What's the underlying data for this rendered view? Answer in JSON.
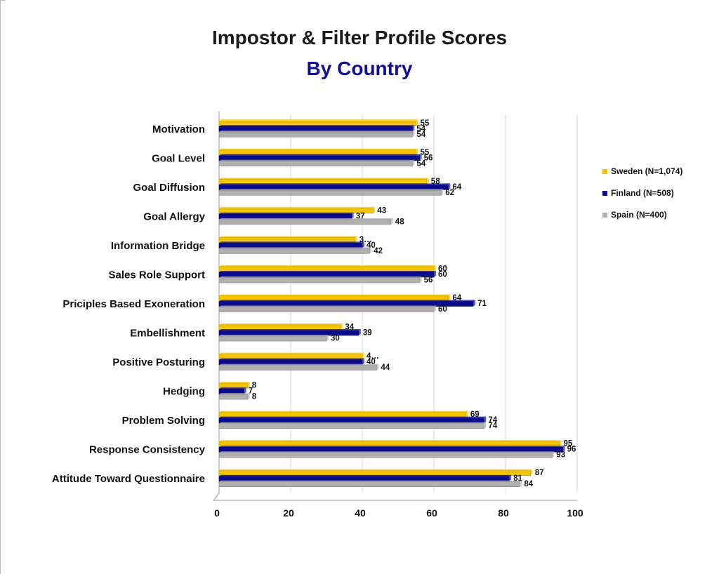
{
  "chart_data": {
    "type": "bar",
    "orientation": "horizontal",
    "title": "Impostor & Filter Profile Scores",
    "subtitle": "By Country",
    "categories": [
      "Motivation",
      "Goal Level",
      "Goal Diffusion",
      "Goal Allergy",
      "Information Bridge",
      "Sales Role Support",
      "Priciples Based Exoneration",
      "Embellishment",
      "Positive Posturing",
      "Hedging",
      "Problem Solving",
      "Response Consistency",
      "Attitude Toward Questionnaire"
    ],
    "series": [
      {
        "name": "Sweden (N=1,074)",
        "color": "#f5c400",
        "values": [
          55,
          55,
          58,
          43,
          38,
          60,
          64,
          34,
          40,
          8,
          69,
          95,
          87
        ],
        "labels": [
          "55",
          "55",
          "58",
          "43",
          "3…",
          "60",
          "64",
          "34",
          "4…",
          "8",
          "69",
          "95",
          "87"
        ]
      },
      {
        "name": "Finland (N=508)",
        "color": "#0a0a8c",
        "values": [
          54,
          56,
          64,
          37,
          40,
          60,
          71,
          39,
          40,
          7,
          74,
          96,
          81
        ],
        "labels": [
          "54",
          "56",
          "64",
          "37",
          "40",
          "60",
          "71",
          "39",
          "40",
          "7",
          "74",
          "96",
          "81"
        ]
      },
      {
        "name": "Spain (N=400)",
        "color": "#b0b0b0",
        "values": [
          54,
          54,
          62,
          48,
          42,
          56,
          60,
          30,
          44,
          8,
          74,
          93,
          84
        ],
        "labels": [
          "54",
          "54",
          "62",
          "48",
          "42",
          "56",
          "60",
          "30",
          "44",
          "8",
          "74",
          "93",
          "84"
        ]
      }
    ],
    "xticks": [
      "0",
      "20",
      "40",
      "60",
      "80",
      "100"
    ],
    "xlim": [
      0,
      100
    ],
    "grid": "vertical",
    "legend_position": "right"
  }
}
